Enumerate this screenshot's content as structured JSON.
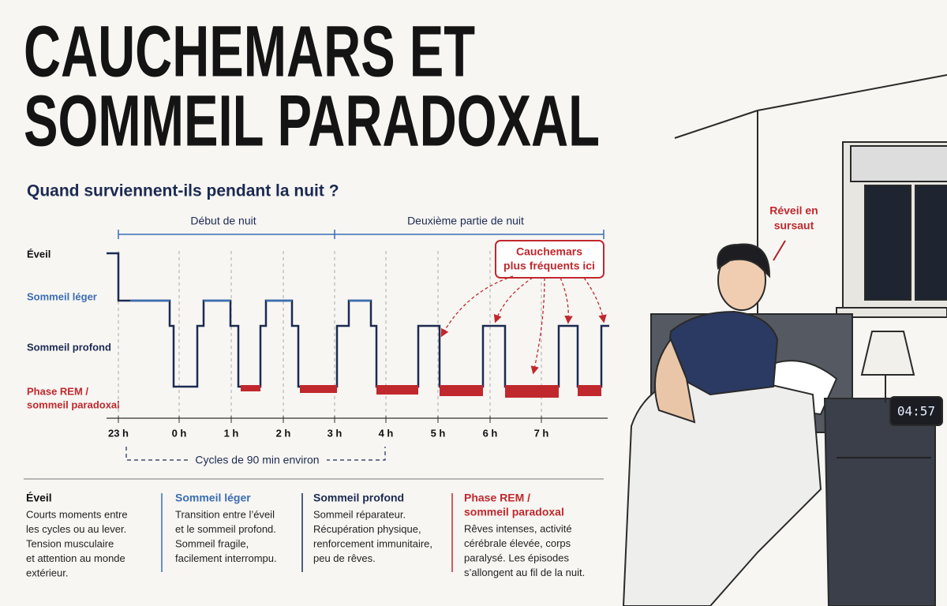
{
  "title": {
    "line1": "CAUCHEMARS ET",
    "line2": "SOMMEIL PARADOXAL"
  },
  "subtitle": "Quand surviennent-ils pendant la nuit ?",
  "hypnogram": {
    "stage_labels": [
      "Éveil",
      "Sommeil léger",
      "Sommeil profond"
    ],
    "rem_label": [
      "Phase REM /",
      "sommeil paradoxal"
    ],
    "time_labels": [
      "23 h",
      "0 h",
      "1 h",
      "2 h",
      "3 h",
      "4 h",
      "5 h",
      "6 h",
      "7 h"
    ],
    "periods": [
      "Début de nuit",
      "Deuxième partie de nuit"
    ],
    "annotation": [
      "Cauchemars",
      "plus fréquents ici"
    ],
    "cycle_note": "Cycles de 90 min environ"
  },
  "legend": [
    {
      "title": [
        "Éveil"
      ],
      "lines": [
        "Courts moments entre",
        "les cycles ou au lever.",
        "Tension musculaire",
        "et attention au monde",
        "extérieur."
      ]
    },
    {
      "title": [
        "Sommeil léger"
      ],
      "lines": [
        "Transition entre l’éveil",
        "et le sommeil profond.",
        "Sommeil fragile,",
        "facilement interrompu."
      ]
    },
    {
      "title": [
        "Sommeil profond"
      ],
      "lines": [
        "Sommeil réparateur.",
        "Récupération physique,",
        "renforcement immunitaire,",
        "peu de rêves."
      ]
    },
    {
      "title": [
        "Phase REM /",
        "sommeil paradoxal"
      ],
      "lines": [
        "Rêves intenses, activité",
        "cérébrale élevée, corps",
        "paralysé. Les épisodes",
        "s’allongent au fil de la nuit."
      ]
    }
  ],
  "illustration": {
    "label": [
      "Réveil en",
      "sursaut"
    ],
    "clock": "04:57"
  }
}
